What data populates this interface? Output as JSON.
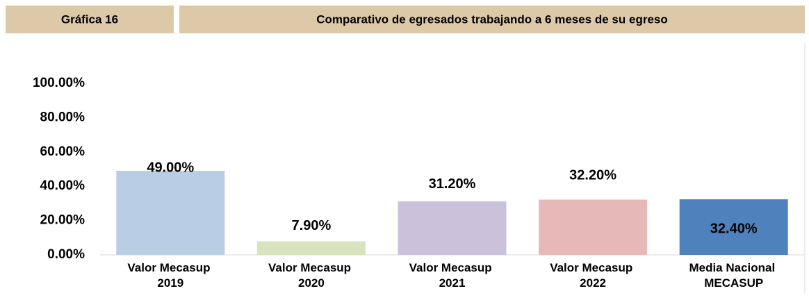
{
  "header": {
    "label": "Gráfica 16",
    "title": "Comparativo de egresados trabajando a 6 meses de su egreso"
  },
  "chart_data": {
    "type": "bar",
    "categories": [
      "Valor Mecasup 2019",
      "Valor Mecasup 2020",
      "Valor Mecasup 2021",
      "Valor Mecasup 2022",
      "Media Nacional MECASUP"
    ],
    "values": [
      49.0,
      7.9,
      31.2,
      32.2,
      32.4
    ],
    "value_labels": [
      "49.00%",
      "7.90%",
      "31.20%",
      "32.20%",
      "32.40%"
    ],
    "colors": [
      "#b9cde5",
      "#d7e4bd",
      "#ccc1da",
      "#e6b9b8",
      "#4f81bd"
    ],
    "ylim": [
      0,
      100
    ],
    "yticks": [
      {
        "value": 0,
        "label": "0.00%"
      },
      {
        "value": 20,
        "label": "20.00%"
      },
      {
        "value": 40,
        "label": "40.00%"
      },
      {
        "value": 60,
        "label": "60.00%"
      },
      {
        "value": 80,
        "label": "80.00%"
      },
      {
        "value": 100,
        "label": "100.00%"
      }
    ],
    "grid": false
  }
}
